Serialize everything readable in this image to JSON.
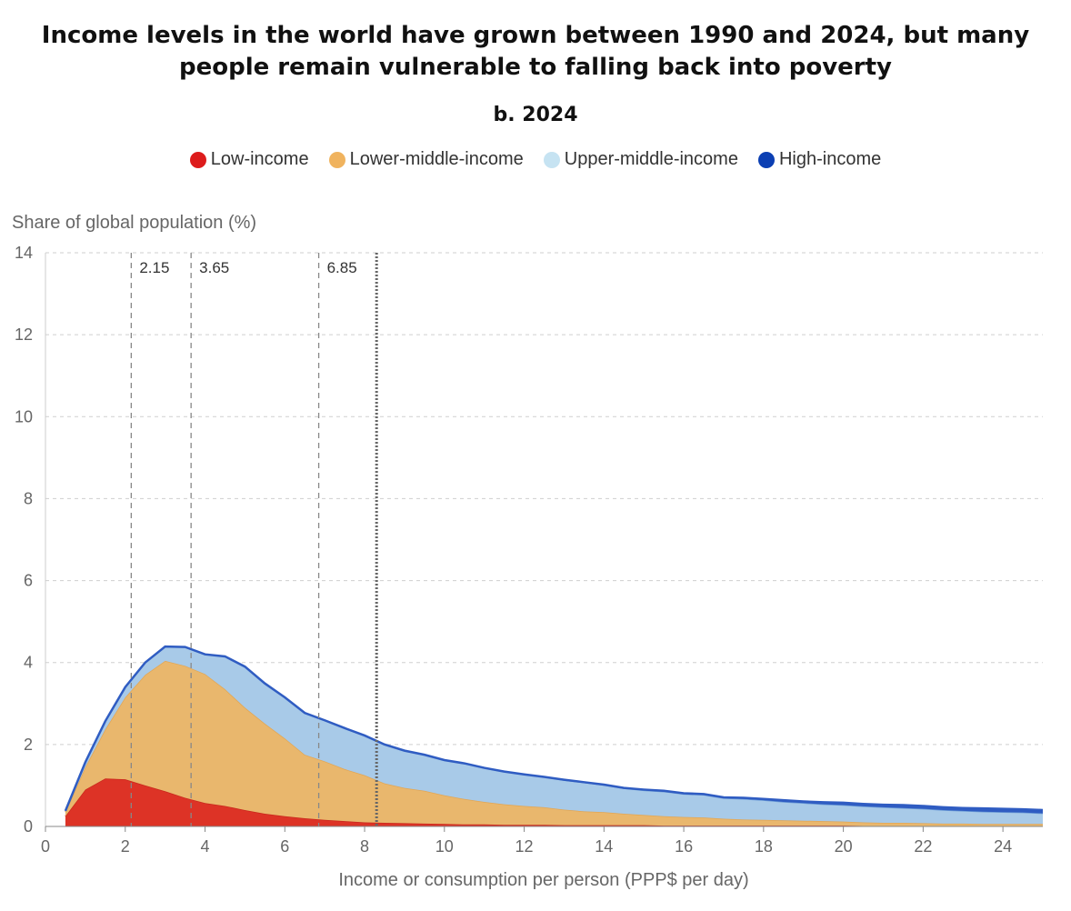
{
  "title_line1": "Income levels in the world have grown between 1990 and 2024, but many",
  "title_line2": "people remain vulnerable to falling back into poverty",
  "subtitle": "b. 2024",
  "legend": [
    {
      "label": "Low-income",
      "color": "#dd1c1c"
    },
    {
      "label": "Lower-middle-income",
      "color": "#f0b35e"
    },
    {
      "label": "Upper-middle-income",
      "color": "#c6e3f2"
    },
    {
      "label": "High-income",
      "color": "#0b3fb3"
    }
  ],
  "chart_data": {
    "type": "area",
    "stacked": true,
    "ylabel": "Share of global population (%)",
    "xlabel": "Income or consumption per person (PPP$ per day)",
    "xlim": [
      0,
      25
    ],
    "ylim": [
      0,
      14
    ],
    "xticks": [
      0,
      2,
      4,
      6,
      8,
      10,
      12,
      14,
      16,
      18,
      20,
      22,
      24
    ],
    "yticks": [
      0,
      2,
      4,
      6,
      8,
      10,
      12,
      14
    ],
    "grid": true,
    "legend_position": "top",
    "x": [
      0.5,
      1,
      1.5,
      2,
      2.5,
      3,
      3.5,
      4,
      4.5,
      5,
      5.5,
      6,
      6.5,
      7,
      7.5,
      8,
      8.5,
      9,
      9.5,
      10,
      10.5,
      11,
      11.5,
      12,
      12.5,
      13,
      13.5,
      14,
      14.5,
      15,
      15.5,
      16,
      16.5,
      17,
      17.5,
      18,
      18.5,
      19,
      19.5,
      20,
      20.5,
      21,
      21.5,
      22,
      22.5,
      23,
      23.5,
      24,
      24.5,
      25
    ],
    "series": [
      {
        "name": "Low-income",
        "color": "#dd3326",
        "values": [
          0.25,
          0.9,
          1.17,
          1.15,
          1.0,
          0.86,
          0.7,
          0.57,
          0.5,
          0.4,
          0.31,
          0.25,
          0.2,
          0.16,
          0.13,
          0.1,
          0.09,
          0.08,
          0.07,
          0.06,
          0.05,
          0.05,
          0.04,
          0.04,
          0.04,
          0.03,
          0.03,
          0.03,
          0.03,
          0.03,
          0.02,
          0.02,
          0.02,
          0.02,
          0.02,
          0.02,
          0.02,
          0.02,
          0.02,
          0.02,
          0.01,
          0.01,
          0.01,
          0.01,
          0.01,
          0.01,
          0.01,
          0.01,
          0.01,
          0.01
        ]
      },
      {
        "name": "Lower-middle-income",
        "color": "#e9b76d",
        "values": [
          0.1,
          0.55,
          1.2,
          2.0,
          2.7,
          3.18,
          3.22,
          3.15,
          2.85,
          2.5,
          2.2,
          1.9,
          1.55,
          1.43,
          1.27,
          1.15,
          0.96,
          0.86,
          0.8,
          0.7,
          0.62,
          0.55,
          0.5,
          0.46,
          0.43,
          0.38,
          0.34,
          0.32,
          0.28,
          0.25,
          0.23,
          0.21,
          0.2,
          0.17,
          0.15,
          0.14,
          0.13,
          0.12,
          0.11,
          0.1,
          0.09,
          0.08,
          0.08,
          0.07,
          0.06,
          0.06,
          0.05,
          0.05,
          0.05,
          0.05
        ]
      },
      {
        "name": "Upper-middle-income",
        "color": "#a8cae8",
        "values": [
          0.03,
          0.12,
          0.2,
          0.25,
          0.3,
          0.35,
          0.46,
          0.48,
          0.8,
          1.0,
          0.98,
          1.0,
          1.02,
          1.0,
          1.0,
          0.97,
          0.95,
          0.91,
          0.88,
          0.86,
          0.87,
          0.83,
          0.8,
          0.77,
          0.74,
          0.72,
          0.7,
          0.66,
          0.62,
          0.6,
          0.6,
          0.56,
          0.55,
          0.5,
          0.5,
          0.48,
          0.45,
          0.43,
          0.41,
          0.4,
          0.39,
          0.38,
          0.36,
          0.35,
          0.33,
          0.31,
          0.3,
          0.29,
          0.28,
          0.26
        ]
      },
      {
        "name": "High-income",
        "color": "#2f5cc2",
        "values": [
          0.0,
          0.0,
          0.0,
          0.0,
          0.0,
          0.0,
          0.0,
          0.0,
          0.0,
          0.0,
          0.0,
          0.0,
          0.0,
          0.0,
          0.0,
          0.0,
          0.0,
          0.0,
          0.0,
          0.0,
          0.0,
          0.0,
          0.0,
          0.0,
          0.0,
          0.01,
          0.01,
          0.01,
          0.01,
          0.02,
          0.02,
          0.02,
          0.02,
          0.02,
          0.03,
          0.03,
          0.04,
          0.04,
          0.05,
          0.06,
          0.06,
          0.06,
          0.07,
          0.07,
          0.07,
          0.07,
          0.08,
          0.08,
          0.08,
          0.08
        ]
      }
    ],
    "reference_lines": [
      {
        "x": 2.15,
        "label": "2.15",
        "style": "dashed"
      },
      {
        "x": 3.65,
        "label": "3.65",
        "style": "dashed"
      },
      {
        "x": 6.85,
        "label": "6.85",
        "style": "dashed"
      },
      {
        "x": 8.3,
        "label": "",
        "style": "dotted"
      }
    ]
  }
}
